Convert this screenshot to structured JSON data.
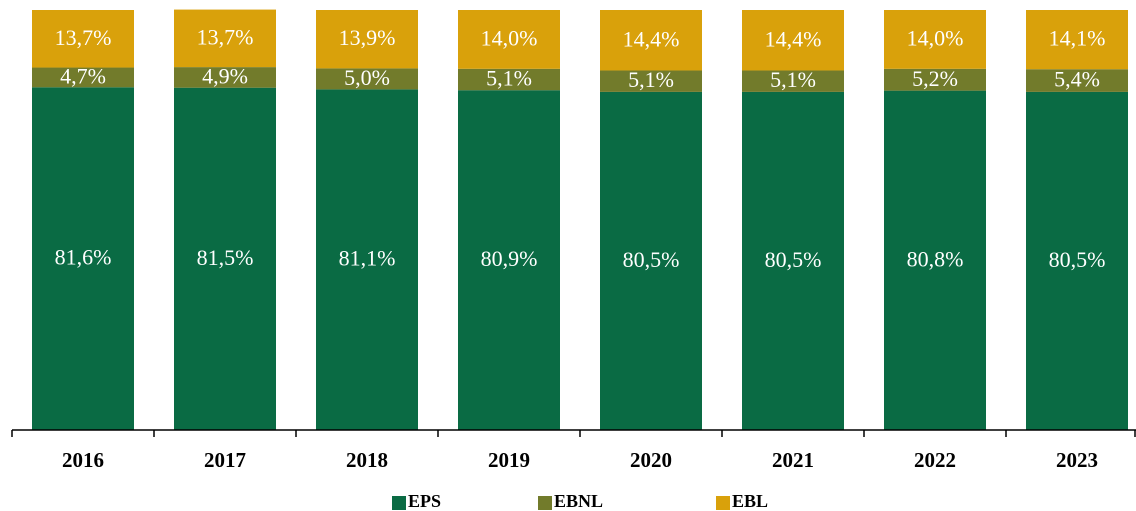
{
  "chart_data": {
    "type": "stacked_bar",
    "categories": [
      "2016",
      "2017",
      "2018",
      "2019",
      "2020",
      "2021",
      "2022",
      "2023"
    ],
    "series": [
      {
        "name": "EPS",
        "color": "#0a6b44",
        "values": [
          81.6,
          81.5,
          81.1,
          80.9,
          80.5,
          80.5,
          80.8,
          80.5
        ],
        "value_labels": [
          "81,6%",
          "81,5%",
          "81,1%",
          "80,9%",
          "80,5%",
          "80,5%",
          "80,8%",
          "80,5%"
        ]
      },
      {
        "name": "EBNL",
        "color": "#727b2b",
        "values": [
          4.7,
          4.9,
          5.0,
          5.1,
          5.1,
          5.1,
          5.2,
          5.4
        ],
        "value_labels": [
          "4,7%",
          "4,9%",
          "5,0%",
          "5,1%",
          "5,1%",
          "5,1%",
          "5,2%",
          "5,4%"
        ]
      },
      {
        "name": "EBL",
        "color": "#d9a10b",
        "values": [
          13.7,
          13.7,
          13.9,
          14.0,
          14.4,
          14.4,
          14.0,
          14.1
        ],
        "value_labels": [
          "13,7%",
          "13,7%",
          "13,9%",
          "14,0%",
          "14,4%",
          "14,4%",
          "14,0%",
          "14,1%"
        ]
      }
    ],
    "ylim": [
      0,
      100
    ],
    "legend": "bottom"
  }
}
